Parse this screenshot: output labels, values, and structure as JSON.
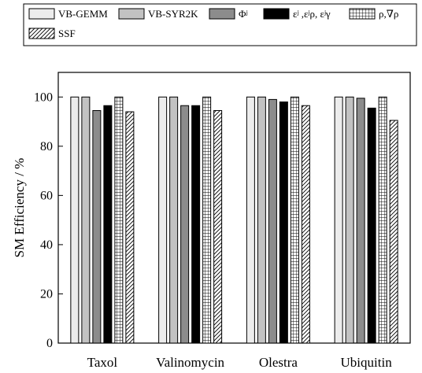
{
  "chart_data": {
    "type": "bar",
    "categories": [
      "Taxol",
      "Valinomycin",
      "Olestra",
      "Ubiquitin"
    ],
    "series": [
      {
        "name": "VB-GEMM",
        "values": [
          100,
          100,
          100,
          100
        ],
        "fill": "#ececec",
        "pattern": "solid"
      },
      {
        "name": "VB-SYR2K",
        "values": [
          100,
          100,
          100,
          100
        ],
        "fill": "#c2c2c2",
        "pattern": "solid"
      },
      {
        "name": "Φʲ",
        "values": [
          94.5,
          96.5,
          99.0,
          99.5
        ],
        "fill": "#8c8c8c",
        "pattern": "solid"
      },
      {
        "name": "εʲ ,εʲρ, εʲγ",
        "values": [
          96.5,
          96.5,
          98.0,
          95.5
        ],
        "fill": "#000000",
        "pattern": "solid"
      },
      {
        "name": "ρ,∇ρ",
        "values": [
          100,
          100,
          100,
          100
        ],
        "fill": "#ffffff",
        "pattern": "grid"
      },
      {
        "name": "SSF",
        "values": [
          94.0,
          94.5,
          96.5,
          90.5
        ],
        "fill": "#ffffff",
        "pattern": "hatch"
      }
    ],
    "ylabel": "SM Efficiency / %",
    "xlabel": "",
    "ylim": [
      0,
      110
    ],
    "yticks": [
      0,
      20,
      40,
      60,
      80,
      100
    ],
    "grid": false,
    "legend_position": "top"
  }
}
